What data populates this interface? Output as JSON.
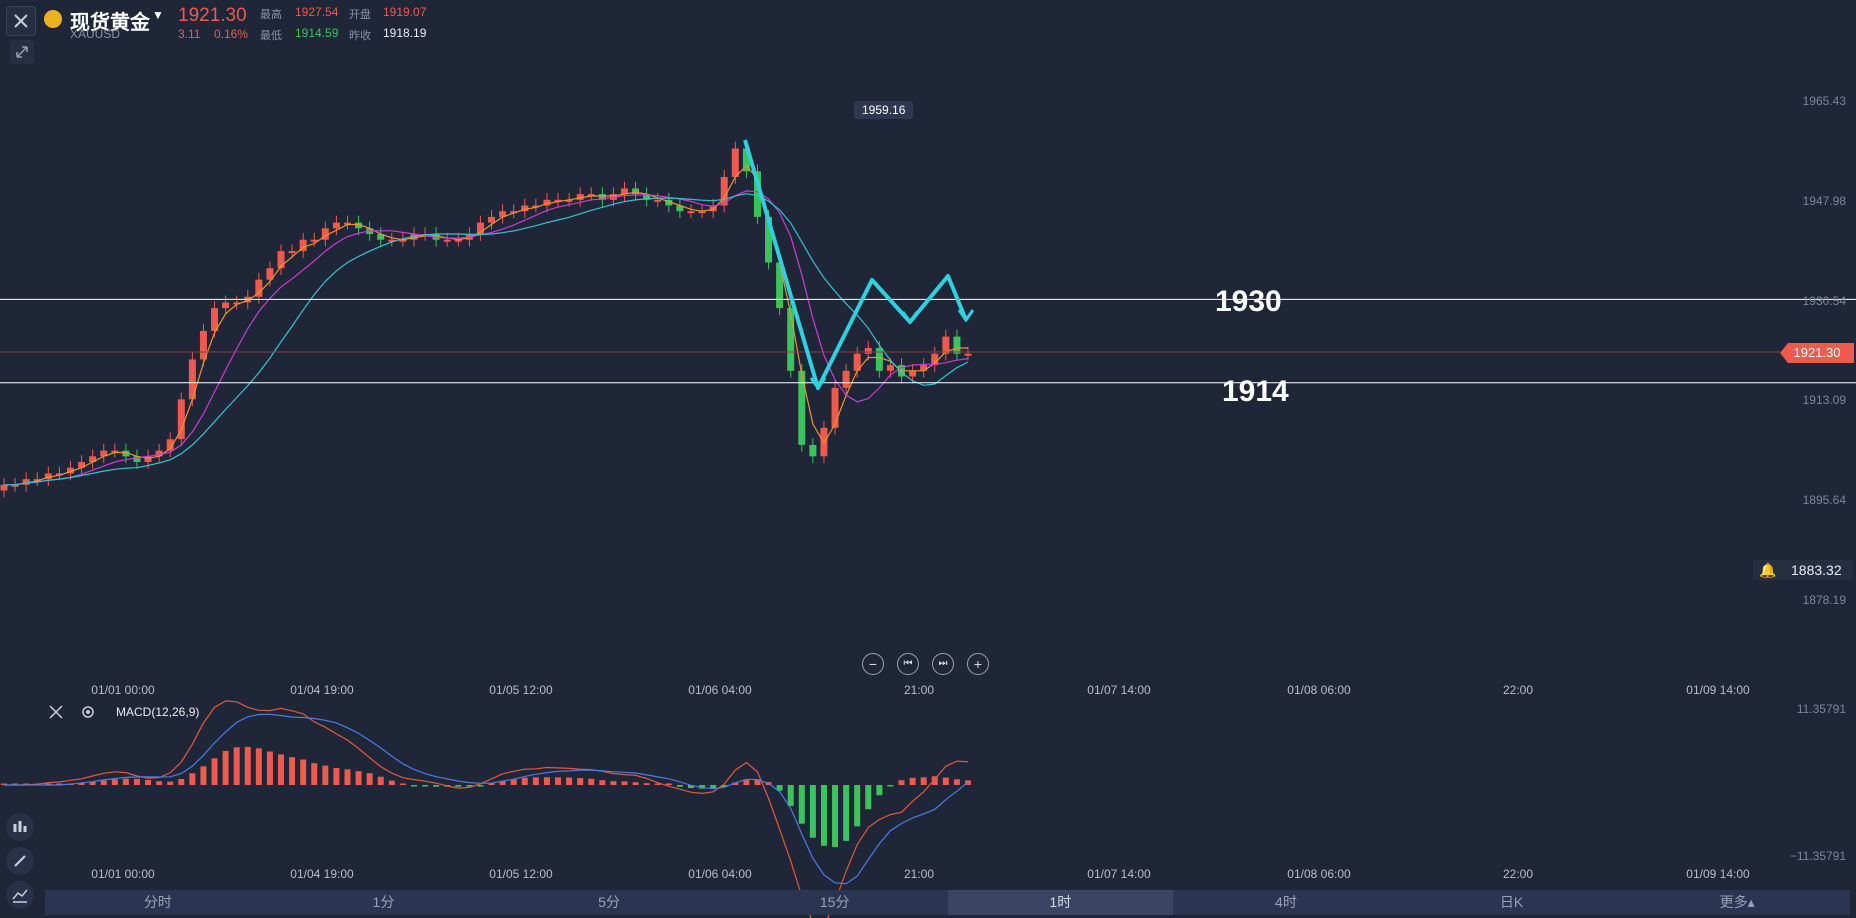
{
  "header": {
    "symbol_name": "现货黄金",
    "symbol_code": "XAUUSD",
    "last_price": "1921.30",
    "change": "3.11",
    "change_pct": "0.16%",
    "high_label": "最高",
    "high_value": "1927.54",
    "open_label": "开盘",
    "open_value": "1919.07",
    "low_label": "最低",
    "low_value": "1914.59",
    "prev_close_label": "昨收",
    "prev_close_value": "1918.19"
  },
  "chart": {
    "y_ticks": [
      "1965.43",
      "1947.98",
      "1930.54",
      "1913.09",
      "1895.64",
      "1878.19"
    ],
    "x_ticks": [
      "01/01 00:00",
      "01/04 19:00",
      "01/05 12:00",
      "01/06 04:00",
      "21:00",
      "01/07 14:00",
      "01/08 06:00",
      "22:00",
      "01/09 14:00"
    ],
    "current_price_tag": "1921.30",
    "alert_price": "1883.32",
    "high_marker": "1959.16",
    "level_upper": "1930",
    "level_lower": "1914",
    "colors": {
      "up": "#ee5a4e",
      "down": "#3bc45c",
      "ma_fast": "#f0932b",
      "ma_mid": "#cc3bd6",
      "ma_slow": "#33c2d4",
      "arrow": "#2ed1e0",
      "background": "#1f2638"
    }
  },
  "nav": {
    "zoom_out": "−",
    "first": "⏮",
    "last": "⏭",
    "zoom_in": "+"
  },
  "macd": {
    "title": "MACD(12,26,9)",
    "y_max": "11.35791",
    "y_min": "−11.35791"
  },
  "tabs": [
    {
      "label": "分时",
      "active": false
    },
    {
      "label": "1分",
      "active": false
    },
    {
      "label": "5分",
      "active": false
    },
    {
      "label": "15分",
      "active": false
    },
    {
      "label": "1时",
      "active": true
    },
    {
      "label": "4时",
      "active": false
    },
    {
      "label": "日K",
      "active": false
    },
    {
      "label": "更多▴",
      "active": false
    }
  ],
  "icons": [
    "close-icon",
    "gold-coin-icon",
    "dropdown-caret-icon",
    "collapse-arrows-icon",
    "bell-icon",
    "settings-gear-icon",
    "indicator-icon",
    "pencil-icon",
    "line-chart-icon"
  ]
}
